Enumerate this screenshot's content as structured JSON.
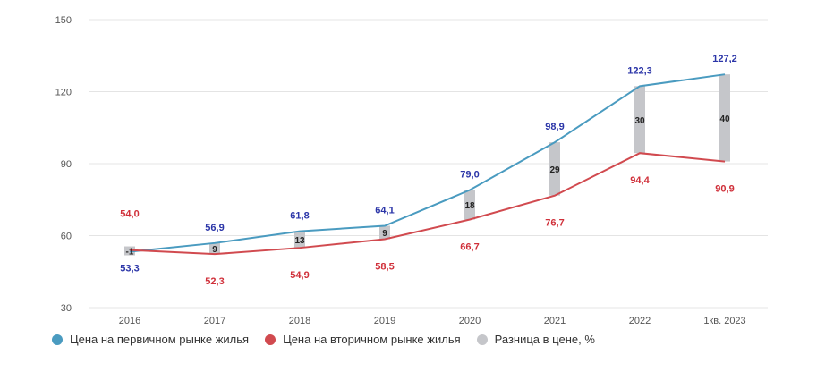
{
  "chart_data": {
    "type": "line",
    "categories": [
      "2016",
      "2017",
      "2018",
      "2019",
      "2020",
      "2021",
      "2022",
      "1кв. 2023"
    ],
    "yticks": [
      "150",
      "120",
      "90",
      "60",
      "30"
    ],
    "ylim": [
      30,
      150
    ],
    "grid": true,
    "series": [
      {
        "name": "Цена на первичном рынке жилья",
        "color": "#4a9bc0",
        "label_color": "#2b35a8",
        "values": [
          53.3,
          56.9,
          61.8,
          64.1,
          79.0,
          98.9,
          122.3,
          127.2
        ],
        "labels": [
          "53,3",
          "56,9",
          "61,8",
          "64,1",
          "79,0",
          "98,9",
          "122,3",
          "127,2"
        ]
      },
      {
        "name": "Цена на вторичном рынке жилья",
        "color": "#d14a4f",
        "label_color": "#d0303a",
        "values": [
          54.0,
          52.3,
          54.9,
          58.5,
          66.7,
          76.7,
          94.4,
          90.9
        ],
        "labels": [
          "54,0",
          "52,3",
          "54,9",
          "58,5",
          "66,7",
          "76,7",
          "94,4",
          "90,9"
        ]
      }
    ],
    "difference": {
      "name": "Разница в цене, %",
      "color": "#c5c6ca",
      "values": [
        -1,
        9,
        13,
        9,
        18,
        29,
        30,
        40
      ],
      "labels": [
        "-1",
        "9",
        "13",
        "9",
        "18",
        "29",
        "30",
        "40"
      ]
    },
    "legend_position": "bottom-left"
  }
}
